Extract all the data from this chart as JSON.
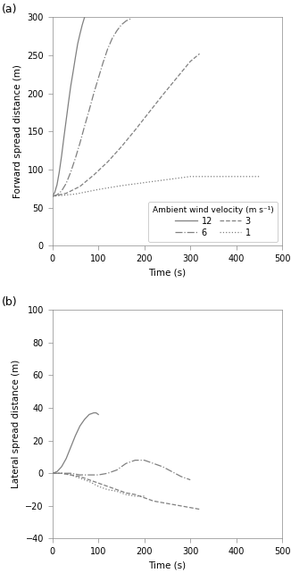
{
  "title_a": "(a)",
  "title_b": "(b)",
  "ylabel_a": "Forward spread distance (m)",
  "ylabel_b": "Lateral spread distance (m)",
  "xlabel": "Time (s)",
  "xlim": [
    0,
    500
  ],
  "ylim_a": [
    0,
    300
  ],
  "ylim_b": [
    -40,
    100
  ],
  "yticks_a": [
    0,
    50,
    100,
    150,
    200,
    250,
    300
  ],
  "yticks_b": [
    -40,
    -20,
    0,
    20,
    40,
    60,
    80,
    100
  ],
  "xticks": [
    0,
    100,
    200,
    300,
    400,
    500
  ],
  "legend_title": "Ambient wind velocity (m s⁻¹)",
  "wind12_a_t": [
    0,
    5,
    10,
    15,
    20,
    25,
    30,
    35,
    40,
    45,
    50,
    55,
    60,
    65,
    70
  ],
  "wind12_a_y": [
    65,
    70,
    80,
    97,
    118,
    142,
    165,
    188,
    210,
    228,
    247,
    265,
    278,
    290,
    300
  ],
  "wind6_a_t": [
    0,
    10,
    20,
    30,
    40,
    50,
    60,
    70,
    80,
    90,
    100,
    110,
    120,
    130,
    140,
    150,
    160,
    170
  ],
  "wind6_a_y": [
    65,
    67,
    72,
    82,
    97,
    115,
    135,
    157,
    178,
    200,
    220,
    240,
    258,
    272,
    282,
    290,
    295,
    298
  ],
  "wind3_a_t": [
    0,
    30,
    60,
    90,
    120,
    150,
    180,
    210,
    240,
    270,
    300,
    320
  ],
  "wind3_a_y": [
    65,
    69,
    78,
    93,
    110,
    130,
    152,
    175,
    198,
    220,
    242,
    252
  ],
  "wind1_a_t": [
    0,
    50,
    100,
    150,
    200,
    250,
    300,
    350,
    400,
    450
  ],
  "wind1_a_y": [
    65,
    68,
    74,
    79,
    83,
    87,
    91,
    91,
    91,
    91
  ],
  "wind12_b_t": [
    0,
    10,
    20,
    30,
    40,
    50,
    60,
    70,
    80,
    90,
    95,
    100
  ],
  "wind12_b_y": [
    0,
    1,
    4,
    9,
    16,
    23,
    29,
    33,
    36,
    37,
    37,
    36
  ],
  "wind6_b_t": [
    0,
    20,
    40,
    60,
    80,
    100,
    120,
    140,
    160,
    180,
    200,
    220,
    240,
    260,
    280,
    300
  ],
  "wind6_b_y": [
    0,
    0,
    0,
    -1,
    -1,
    -1,
    0,
    2,
    6,
    8,
    8,
    6,
    4,
    1,
    -2,
    -4
  ],
  "wind3_b_t": [
    0,
    20,
    40,
    60,
    80,
    100,
    120,
    140,
    160,
    180,
    200,
    220,
    240,
    260,
    280,
    300,
    320
  ],
  "wind3_b_y": [
    0,
    0,
    -1,
    -2,
    -4,
    -6,
    -8,
    -10,
    -12,
    -13,
    -15,
    -17,
    -18,
    -19,
    -20,
    -21,
    -22
  ],
  "wind1_b_t": [
    0,
    20,
    40,
    60,
    80,
    100,
    120,
    140,
    160,
    180,
    200
  ],
  "wind1_b_y": [
    0,
    0,
    -1,
    -3,
    -5,
    -8,
    -10,
    -11,
    -13,
    -14,
    -14
  ],
  "color": "#808080",
  "linewidth": 0.9
}
